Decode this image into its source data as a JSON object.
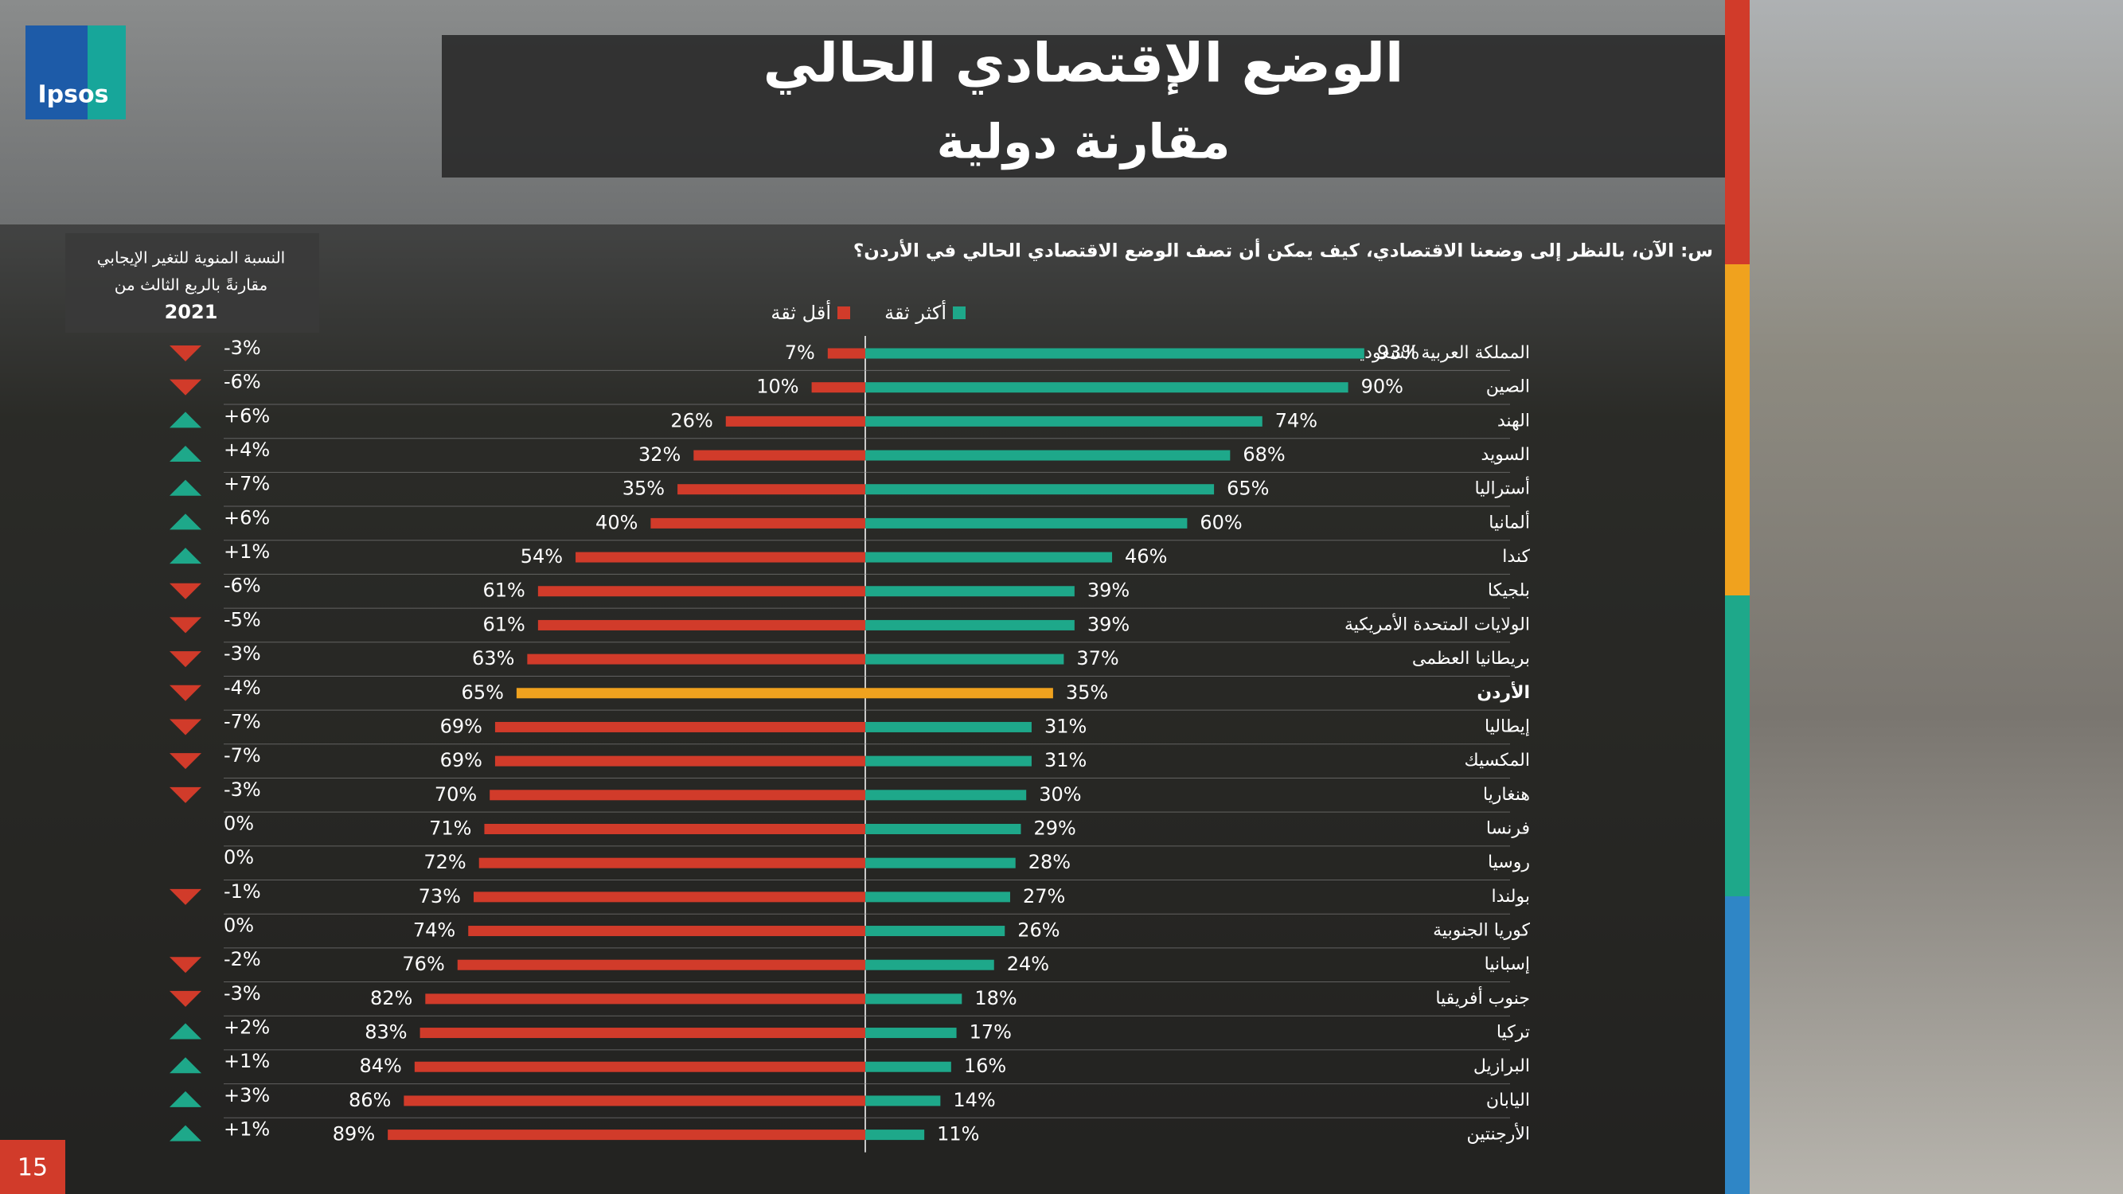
{
  "slide": {
    "logo": "Ipsos",
    "page_number": "15"
  },
  "chart_data": {
    "type": "diverging_bar",
    "title": "الوضع الإقتصادي الحالي",
    "subtitle": "مقارنة دولية",
    "question": "س: الآن، بالنظر إلى وضعنا الاقتصادي، كيف يمكن أن تصف الوضع الاقتصادي الحالي في الأردن؟",
    "categories": [
      "المملكة العربية السعودية",
      "الصين",
      "الهند",
      "السويد",
      "أستراليا",
      "ألمانيا",
      "كندا",
      "بلجيكا",
      "الولايات المتحدة الأمريكية",
      "بريطانيا العظمى",
      "الأردن",
      "إيطاليا",
      "المكسيك",
      "هنغاريا",
      "فرنسا",
      "روسيا",
      "بولندا",
      "كوريا الجنوبية",
      "إسبانيا",
      "جنوب أفريقيا",
      "تركيا",
      "البرازيل",
      "اليابان",
      "الأرجنتين"
    ],
    "highlight_category": "الأردن",
    "highlight_color": "#f0a21e",
    "series": [
      {
        "name": "أكثر ثقة",
        "color": "#1ea88a",
        "side": "right",
        "values": [
          93,
          90,
          74,
          68,
          65,
          60,
          46,
          39,
          39,
          37,
          35,
          31,
          31,
          30,
          29,
          28,
          27,
          26,
          24,
          18,
          17,
          16,
          14,
          11
        ],
        "value_labels": [
          "93%",
          "90%",
          "74%",
          "68%",
          "65%",
          "60%",
          "46%",
          "39%",
          "39%",
          "37%",
          "35%",
          "31%",
          "31%",
          "30%",
          "29%",
          "28%",
          "27%",
          "26%",
          "24%",
          "18%",
          "17%",
          "16%",
          "14%",
          "11%"
        ]
      },
      {
        "name": "أقل ثقة",
        "color": "#d13b2a",
        "side": "left",
        "values": [
          7,
          10,
          26,
          32,
          35,
          40,
          54,
          61,
          61,
          63,
          65,
          69,
          69,
          70,
          71,
          72,
          73,
          74,
          76,
          82,
          83,
          84,
          86,
          89
        ],
        "value_labels": [
          "7%",
          "10%",
          "26%",
          "32%",
          "35%",
          "40%",
          "54%",
          "61%",
          "61%",
          "63%",
          "65%",
          "69%",
          "69%",
          "70%",
          "71%",
          "72%",
          "73%",
          "74%",
          "76%",
          "82%",
          "83%",
          "84%",
          "86%",
          "89%"
        ]
      }
    ],
    "change": {
      "title": [
        "النسبة المنوية للتغير الإيجابي",
        "مقارنةً بالربع الثالث من",
        "2021"
      ],
      "up_color": "#1ea88a",
      "down_color": "#d13b2a",
      "values": [
        -3,
        -6,
        6,
        4,
        7,
        6,
        1,
        -6,
        -5,
        -3,
        -4,
        -7,
        -7,
        -3,
        0,
        0,
        -1,
        0,
        -2,
        -3,
        2,
        1,
        3,
        1
      ],
      "value_labels": [
        "-3%",
        "-6%",
        "+6%",
        "+4%",
        "+7%",
        "+6%",
        "+1%",
        "-6%",
        "-5%",
        "-3%",
        "-4%",
        "-7%",
        "-7%",
        "-3%",
        "0%",
        "0%",
        "-1%",
        "0%",
        "-2%",
        "-3%",
        "+2%",
        "+1%",
        "+3%",
        "+1%"
      ]
    }
  }
}
